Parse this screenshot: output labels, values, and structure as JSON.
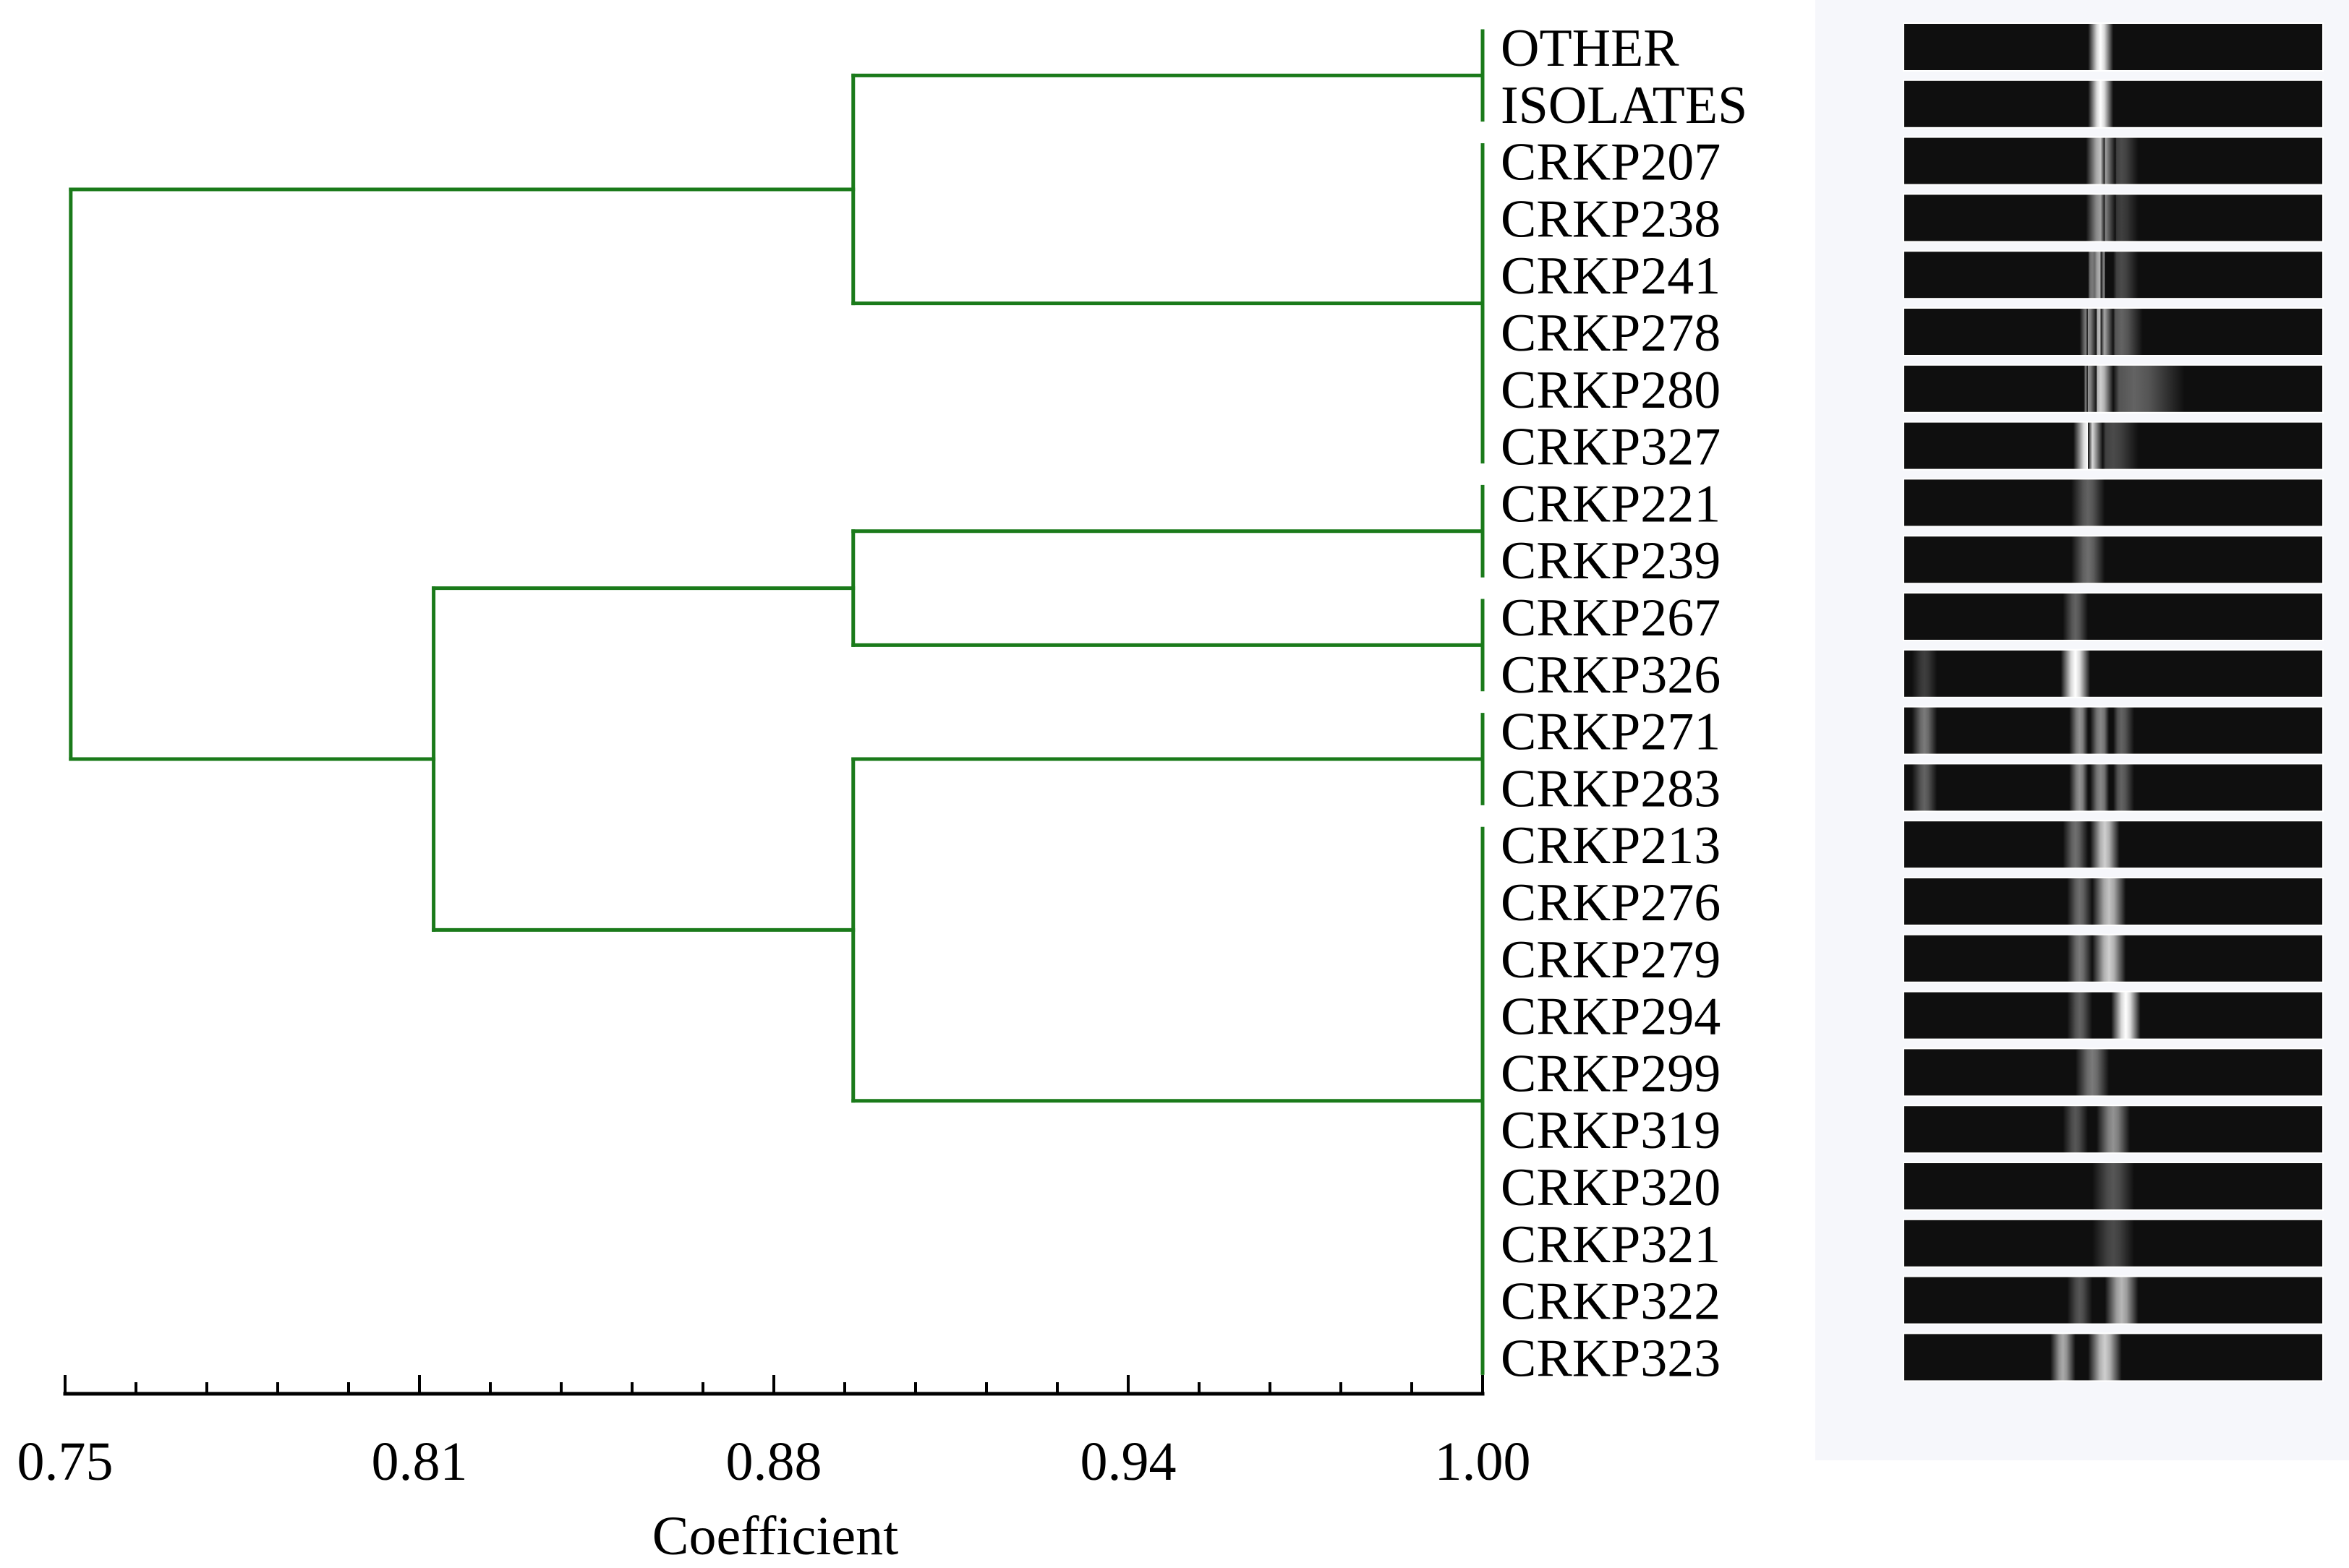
{
  "chart_data": {
    "type": "dendrogram",
    "xlabel": "Coefficient",
    "xlim": [
      0.75,
      1.0
    ],
    "x_ticks": [
      "0.75",
      "0.81",
      "0.88",
      "0.94",
      "1.00"
    ],
    "branch_color": "#1a7a1a",
    "leaves": [
      "OTHER",
      "ISOLATES",
      "CRKP207",
      "CRKP238",
      "CRKP241",
      "CRKP278",
      "CRKP280",
      "CRKP327",
      "CRKP221",
      "CRKP239",
      "CRKP267",
      "CRKP326",
      "CRKP271",
      "CRKP283",
      "CRKP213",
      "CRKP276",
      "CRKP279",
      "CRKP294",
      "CRKP299",
      "CRKP319",
      "CRKP320",
      "CRKP321",
      "CRKP322",
      "CRKP323"
    ],
    "clusters": [
      {
        "name": "A",
        "leaf_indices": [
          0,
          1
        ],
        "similarity": 1.0
      },
      {
        "name": "B",
        "leaf_indices": [
          2,
          3,
          4,
          5,
          6,
          7
        ],
        "similarity": 1.0
      },
      {
        "name": "C",
        "leaf_indices": [
          8,
          9
        ],
        "similarity": 1.0
      },
      {
        "name": "D",
        "leaf_indices": [
          10,
          11
        ],
        "similarity": 1.0
      },
      {
        "name": "E",
        "leaf_indices": [
          12,
          13
        ],
        "similarity": 1.0
      },
      {
        "name": "F",
        "leaf_indices": [
          14,
          15,
          16,
          17,
          18,
          19,
          20,
          21,
          22,
          23
        ],
        "similarity": 1.0
      }
    ],
    "merges": [
      {
        "name": "AB",
        "children": [
          "A",
          "B"
        ],
        "similarity": 0.889
      },
      {
        "name": "CD",
        "children": [
          "C",
          "D"
        ],
        "similarity": 0.889
      },
      {
        "name": "EF",
        "children": [
          "E",
          "F"
        ],
        "similarity": 0.889
      },
      {
        "name": "CDEF",
        "children": [
          "CD",
          "EF"
        ],
        "similarity": 0.815
      },
      {
        "name": "root",
        "children": [
          "AB",
          "CDEF"
        ],
        "similarity": 0.751
      }
    ],
    "gel_lanes": [
      {
        "leaf_index": 0,
        "bands": [
          {
            "pos": 0.47,
            "intensity": 1.0,
            "width": 0.03
          }
        ]
      },
      {
        "leaf_index": 1,
        "bands": [
          {
            "pos": 0.47,
            "intensity": 1.0,
            "width": 0.03
          }
        ]
      },
      {
        "leaf_index": 2,
        "bands": [
          {
            "pos": 0.47,
            "intensity": 0.75,
            "width": 0.035
          },
          {
            "pos": 0.52,
            "intensity": 0.25,
            "width": 0.04
          }
        ]
      },
      {
        "leaf_index": 3,
        "bands": [
          {
            "pos": 0.47,
            "intensity": 0.6,
            "width": 0.035
          },
          {
            "pos": 0.52,
            "intensity": 0.2,
            "width": 0.04
          }
        ]
      },
      {
        "leaf_index": 4,
        "bands": [
          {
            "pos": 0.45,
            "intensity": 0.45,
            "width": 0.02
          },
          {
            "pos": 0.47,
            "intensity": 0.7,
            "width": 0.03
          },
          {
            "pos": 0.52,
            "intensity": 0.25,
            "width": 0.04
          }
        ]
      },
      {
        "leaf_index": 5,
        "bands": [
          {
            "pos": 0.44,
            "intensity": 0.55,
            "width": 0.02
          },
          {
            "pos": 0.47,
            "intensity": 0.75,
            "width": 0.03
          },
          {
            "pos": 0.52,
            "intensity": 0.35,
            "width": 0.05
          }
        ]
      },
      {
        "leaf_index": 6,
        "bands": [
          {
            "pos": 0.44,
            "intensity": 0.55,
            "width": 0.02
          },
          {
            "pos": 0.47,
            "intensity": 0.8,
            "width": 0.03
          },
          {
            "pos": 0.55,
            "intensity": 0.35,
            "width": 0.12
          }
        ]
      },
      {
        "leaf_index": 7,
        "bands": [
          {
            "pos": 0.44,
            "intensity": 1.0,
            "width": 0.035
          },
          {
            "pos": 0.5,
            "intensity": 0.25,
            "width": 0.06
          }
        ]
      },
      {
        "leaf_index": 8,
        "bands": [
          {
            "pos": 0.44,
            "intensity": 0.35,
            "width": 0.04
          }
        ]
      },
      {
        "leaf_index": 9,
        "bands": [
          {
            "pos": 0.44,
            "intensity": 0.4,
            "width": 0.04
          }
        ]
      },
      {
        "leaf_index": 10,
        "bands": [
          {
            "pos": 0.41,
            "intensity": 0.35,
            "width": 0.03
          }
        ]
      },
      {
        "leaf_index": 11,
        "bands": [
          {
            "pos": 0.41,
            "intensity": 1.0,
            "width": 0.035
          },
          {
            "pos": 0.05,
            "intensity": 0.2,
            "width": 0.03
          }
        ]
      },
      {
        "leaf_index": 12,
        "bands": [
          {
            "pos": 0.05,
            "intensity": 0.45,
            "width": 0.03
          },
          {
            "pos": 0.42,
            "intensity": 0.55,
            "width": 0.025
          },
          {
            "pos": 0.47,
            "intensity": 0.5,
            "width": 0.03
          },
          {
            "pos": 0.52,
            "intensity": 0.35,
            "width": 0.03
          }
        ]
      },
      {
        "leaf_index": 13,
        "bands": [
          {
            "pos": 0.05,
            "intensity": 0.35,
            "width": 0.03
          },
          {
            "pos": 0.42,
            "intensity": 0.55,
            "width": 0.025
          },
          {
            "pos": 0.47,
            "intensity": 0.5,
            "width": 0.03
          },
          {
            "pos": 0.52,
            "intensity": 0.35,
            "width": 0.03
          }
        ]
      },
      {
        "leaf_index": 14,
        "bands": [
          {
            "pos": 0.41,
            "intensity": 0.4,
            "width": 0.03
          },
          {
            "pos": 0.48,
            "intensity": 0.8,
            "width": 0.035
          }
        ]
      },
      {
        "leaf_index": 15,
        "bands": [
          {
            "pos": 0.42,
            "intensity": 0.4,
            "width": 0.03
          },
          {
            "pos": 0.49,
            "intensity": 0.75,
            "width": 0.04
          }
        ]
      },
      {
        "leaf_index": 16,
        "bands": [
          {
            "pos": 0.42,
            "intensity": 0.45,
            "width": 0.03
          },
          {
            "pos": 0.49,
            "intensity": 0.8,
            "width": 0.04
          }
        ]
      },
      {
        "leaf_index": 17,
        "bands": [
          {
            "pos": 0.42,
            "intensity": 0.35,
            "width": 0.03
          },
          {
            "pos": 0.53,
            "intensity": 1.0,
            "width": 0.035
          }
        ]
      },
      {
        "leaf_index": 18,
        "bands": [
          {
            "pos": 0.45,
            "intensity": 0.45,
            "width": 0.04
          }
        ]
      },
      {
        "leaf_index": 19,
        "bands": [
          {
            "pos": 0.41,
            "intensity": 0.3,
            "width": 0.03
          },
          {
            "pos": 0.5,
            "intensity": 0.55,
            "width": 0.04
          }
        ]
      },
      {
        "leaf_index": 20,
        "bands": [
          {
            "pos": 0.5,
            "intensity": 0.3,
            "width": 0.05
          }
        ]
      },
      {
        "leaf_index": 21,
        "bands": [
          {
            "pos": 0.5,
            "intensity": 0.25,
            "width": 0.05
          }
        ]
      },
      {
        "leaf_index": 22,
        "bands": [
          {
            "pos": 0.42,
            "intensity": 0.3,
            "width": 0.03
          },
          {
            "pos": 0.52,
            "intensity": 0.7,
            "width": 0.04
          }
        ]
      },
      {
        "leaf_index": 23,
        "bands": [
          {
            "pos": 0.38,
            "intensity": 0.65,
            "width": 0.03
          },
          {
            "pos": 0.48,
            "intensity": 0.8,
            "width": 0.04
          }
        ]
      }
    ]
  }
}
